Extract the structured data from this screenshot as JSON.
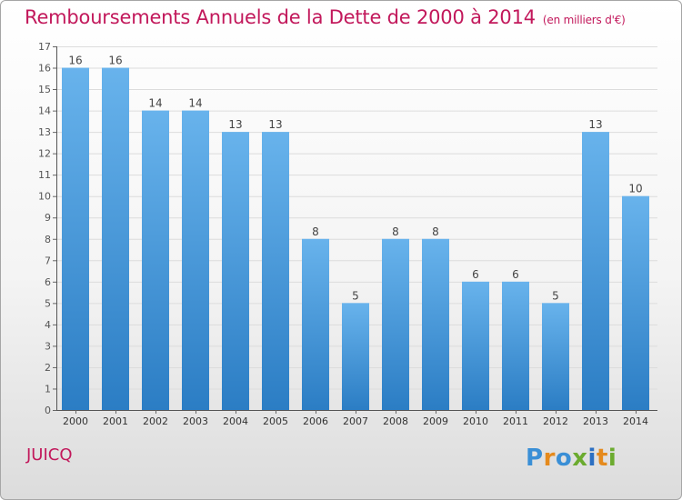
{
  "header": {
    "title": "Remboursements Annuels de la Dette de 2000 à 2014",
    "unit_note": "(en milliers d'€)"
  },
  "footer": {
    "city": "JUICQ",
    "logo_text": "Proxiti"
  },
  "colors": {
    "title": "#c2185b",
    "bar_top": "#68b3ec",
    "bar_bottom": "#2b7dc4"
  },
  "chart_data": {
    "type": "bar",
    "categories": [
      "2000",
      "2001",
      "2002",
      "2003",
      "2004",
      "2005",
      "2006",
      "2007",
      "2008",
      "2009",
      "2010",
      "2011",
      "2012",
      "2013",
      "2014"
    ],
    "values": [
      16,
      16,
      14,
      14,
      13,
      13,
      8,
      5,
      8,
      8,
      6,
      6,
      5,
      13,
      10
    ],
    "data_labels": [
      "16",
      "16",
      "14",
      "14",
      "13",
      "13",
      "8",
      "5",
      "8",
      "8",
      "6",
      "6",
      "5",
      "13",
      "10"
    ],
    "ylim": [
      0,
      17
    ],
    "yticks": [
      "0",
      "1",
      "2",
      "3",
      "4",
      "5",
      "6",
      "7",
      "8",
      "9",
      "10",
      "11",
      "12",
      "13",
      "14",
      "15",
      "16",
      "17"
    ],
    "grid": true,
    "legend": "none"
  }
}
